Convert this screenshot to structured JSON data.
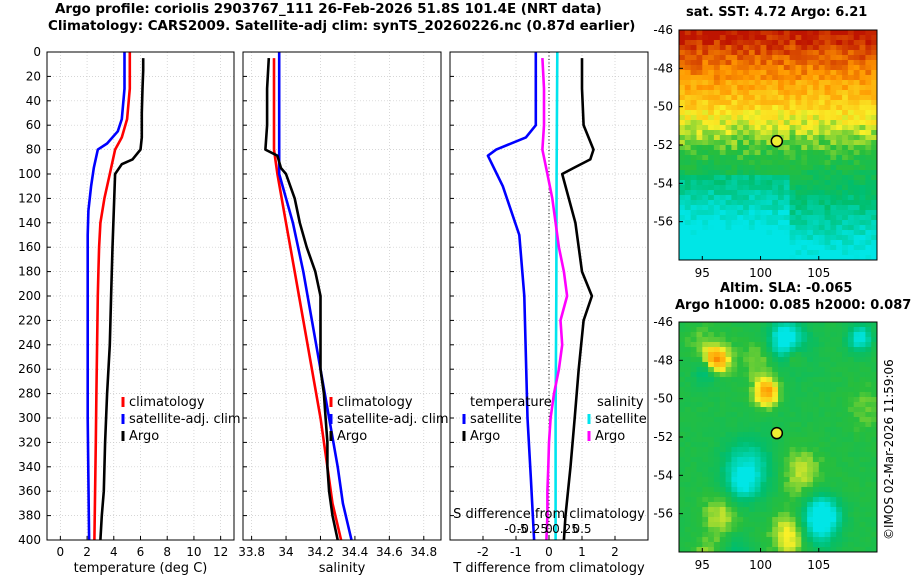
{
  "header": {
    "title_line1": "Argo profile: coriolis 2903767_111 26-Feb-2026 51.8S 101.4E (NRT data)",
    "title_line2": "Climatology: CARS2009. Satellite-adj clim: synTS_20260226.nc (0.87d earlier)",
    "sst_title": "sat. SST: 4.72 Argo: 6.21",
    "sla_title1": "Altim. SLA: -0.065",
    "sla_title2": "Argo h1000: 0.085 h2000: 0.087",
    "stamp": "©IMOS 02-Mar-2026 11:59:06"
  },
  "colors": {
    "climatology": "#ff0000",
    "satellite": "#0000ff",
    "argo": "#000000",
    "salinity_satellite": "#00e5ee",
    "salinity_argo": "#ff00ff"
  },
  "chart_data": [
    {
      "type": "line",
      "panel": "temperature",
      "xlabel": "temperature (deg C)",
      "xlim": [
        -1,
        13
      ],
      "xticks": [
        "0",
        "2",
        "4",
        "6",
        "8",
        "10",
        "12"
      ],
      "xtick_values": [
        0,
        2,
        4,
        6,
        8,
        10,
        12
      ],
      "ylim": [
        0,
        400
      ],
      "yticks": [
        "0",
        "20",
        "40",
        "60",
        "80",
        "100",
        "120",
        "140",
        "160",
        "180",
        "200",
        "220",
        "240",
        "260",
        "280",
        "300",
        "320",
        "340",
        "360",
        "380",
        "400"
      ],
      "ytick_values": [
        0,
        20,
        40,
        60,
        80,
        100,
        120,
        140,
        160,
        180,
        200,
        220,
        240,
        260,
        280,
        300,
        320,
        340,
        360,
        380,
        400
      ],
      "legend": [
        "climatology",
        "satellite-adj. clim",
        "Argo"
      ],
      "series": [
        {
          "name": "climatology",
          "color": "#ff0000",
          "depth": [
            0,
            30,
            55,
            70,
            80,
            100,
            120,
            140,
            160,
            180,
            200,
            240,
            280,
            320,
            360,
            400
          ],
          "values": [
            5.2,
            5.2,
            5.0,
            4.6,
            4.1,
            3.7,
            3.3,
            3.0,
            2.9,
            2.85,
            2.8,
            2.75,
            2.7,
            2.65,
            2.6,
            2.55
          ]
        },
        {
          "name": "satellite-adj. clim",
          "color": "#0000ff",
          "depth": [
            0,
            30,
            55,
            65,
            75,
            80,
            95,
            110,
            130,
            150,
            200,
            250,
            300,
            350,
            400
          ],
          "values": [
            4.8,
            4.8,
            4.6,
            4.3,
            3.5,
            2.8,
            2.5,
            2.3,
            2.1,
            2.05,
            2.05,
            2.05,
            2.05,
            2.1,
            2.15
          ]
        },
        {
          "name": "Argo",
          "color": "#000000",
          "depth": [
            5,
            15,
            30,
            50,
            70,
            80,
            88,
            92,
            100,
            130,
            160,
            200,
            240,
            280,
            320,
            360,
            380,
            400
          ],
          "values": [
            6.2,
            6.2,
            6.15,
            6.1,
            6.1,
            6.0,
            5.4,
            4.6,
            4.1,
            4.0,
            3.9,
            3.8,
            3.7,
            3.5,
            3.35,
            3.25,
            3.1,
            3.0
          ]
        }
      ]
    },
    {
      "type": "line",
      "panel": "salinity",
      "xlabel": "salinity",
      "xlim": [
        33.75,
        34.9
      ],
      "xticks": [
        "33.8",
        "34",
        "34.2",
        "34.4",
        "34.6",
        "34.8"
      ],
      "xtick_values": [
        33.8,
        34.0,
        34.2,
        34.4,
        34.6,
        34.8
      ],
      "ylim": [
        0,
        400
      ],
      "legend": [
        "climatology",
        "satellite-adj. clim",
        "Argo"
      ],
      "series": [
        {
          "name": "climatology",
          "color": "#ff0000",
          "depth": [
            5,
            30,
            60,
            80,
            90,
            100,
            140,
            180,
            220,
            260,
            300,
            340,
            370,
            400
          ],
          "values": [
            33.93,
            33.93,
            33.93,
            33.93,
            33.94,
            33.95,
            34.0,
            34.05,
            34.1,
            34.15,
            34.2,
            34.24,
            34.27,
            34.32
          ]
        },
        {
          "name": "satellite-adj. clim",
          "color": "#0000ff",
          "depth": [
            0,
            30,
            60,
            80,
            90,
            100,
            140,
            180,
            220,
            260,
            300,
            340,
            370,
            400
          ],
          "values": [
            33.96,
            33.96,
            33.96,
            33.96,
            33.96,
            33.96,
            34.04,
            34.1,
            34.15,
            34.2,
            34.25,
            34.3,
            34.33,
            34.38
          ]
        },
        {
          "name": "Argo",
          "color": "#000000",
          "depth": [
            5,
            30,
            60,
            80,
            85,
            95,
            100,
            120,
            140,
            160,
            180,
            200,
            220,
            240,
            260,
            280,
            300,
            320,
            340,
            360,
            380,
            400
          ],
          "values": [
            33.9,
            33.89,
            33.89,
            33.88,
            33.95,
            33.97,
            34.0,
            34.05,
            34.08,
            34.12,
            34.17,
            34.2,
            34.2,
            34.2,
            34.2,
            34.22,
            34.23,
            34.24,
            34.24,
            34.25,
            34.27,
            34.3
          ]
        }
      ]
    },
    {
      "type": "line",
      "panel": "difference",
      "xlabel": "T difference from climatology",
      "top_label": "S difference from climatology",
      "xlim": [
        -3,
        3
      ],
      "xticks": [
        "-2",
        "-1",
        "0",
        "1",
        "2"
      ],
      "xtick_values": [
        -2,
        -1,
        0,
        1,
        2
      ],
      "sticks": [
        "-0.5",
        "-0.25",
        "0",
        "0.25",
        "0.5"
      ],
      "stick_values": [
        -1,
        -0.5,
        0,
        0.5,
        1
      ],
      "ylim": [
        0,
        400
      ],
      "legend_temperature": {
        "title": "temperature",
        "items": [
          "satellite",
          "Argo"
        ]
      },
      "legend_salinity": {
        "title": "salinity",
        "items": [
          "satellite",
          "Argo"
        ]
      },
      "series": [
        {
          "name": "temperature satellite",
          "color": "#0000ff",
          "depth": [
            0,
            30,
            60,
            70,
            80,
            85,
            110,
            150,
            200,
            250,
            300,
            350,
            400
          ],
          "values": [
            -0.4,
            -0.4,
            -0.4,
            -0.7,
            -1.6,
            -1.85,
            -1.4,
            -0.9,
            -0.75,
            -0.7,
            -0.65,
            -0.55,
            -0.45
          ]
        },
        {
          "name": "temperature Argo",
          "color": "#000000",
          "depth": [
            5,
            30,
            60,
            80,
            88,
            95,
            100,
            140,
            180,
            200,
            220,
            260,
            300,
            340,
            380,
            400
          ],
          "values": [
            1.0,
            1.0,
            1.05,
            1.35,
            1.25,
            0.75,
            0.4,
            0.8,
            1.0,
            1.3,
            1.05,
            0.9,
            0.78,
            0.65,
            0.5,
            0.45
          ]
        },
        {
          "name": "salinity satellite",
          "color": "#00e5ee",
          "depth": [
            0,
            100,
            200,
            300,
            400
          ],
          "values": [
            0.25,
            0.23,
            0.22,
            0.2,
            0.2
          ]
        },
        {
          "name": "salinity Argo",
          "color": "#ff00ff",
          "depth": [
            5,
            30,
            60,
            80,
            100,
            120,
            140,
            160,
            180,
            200,
            220,
            240,
            260,
            280,
            300,
            320,
            340,
            360,
            380,
            400
          ],
          "values": [
            -0.2,
            -0.15,
            -0.15,
            -0.2,
            -0.05,
            0.1,
            0.2,
            0.3,
            0.45,
            0.55,
            0.35,
            0.4,
            0.3,
            0.15,
            0.05,
            0.0,
            -0.02,
            -0.05,
            -0.05,
            -0.08
          ]
        }
      ]
    },
    {
      "type": "heatmap",
      "panel": "sst_map",
      "title": "sat. SST: 4.72 Argo: 6.21",
      "xlim": [
        93,
        110
      ],
      "ylim": [
        -58,
        -46
      ],
      "xticks": [
        "95",
        "100",
        "105"
      ],
      "xtick_values": [
        95,
        100,
        105
      ],
      "yticks": [
        "-46",
        "-48",
        "-50",
        "-52",
        "-54",
        "-56"
      ],
      "ytick_values": [
        -46,
        -48,
        -50,
        -52,
        -54,
        -56
      ],
      "marker": {
        "lon": 101.4,
        "lat": -51.8
      }
    },
    {
      "type": "heatmap",
      "panel": "sla_map",
      "title": "Altim. SLA: -0.065",
      "xlim": [
        93,
        110
      ],
      "ylim": [
        -58,
        -46
      ],
      "xticks": [
        "95",
        "100",
        "105"
      ],
      "xtick_values": [
        95,
        100,
        105
      ],
      "yticks": [
        "-46",
        "-48",
        "-50",
        "-52",
        "-54",
        "-56"
      ],
      "ytick_values": [
        -46,
        -48,
        -50,
        -52,
        -54,
        -56
      ],
      "marker": {
        "lon": 101.4,
        "lat": -51.8
      }
    }
  ]
}
